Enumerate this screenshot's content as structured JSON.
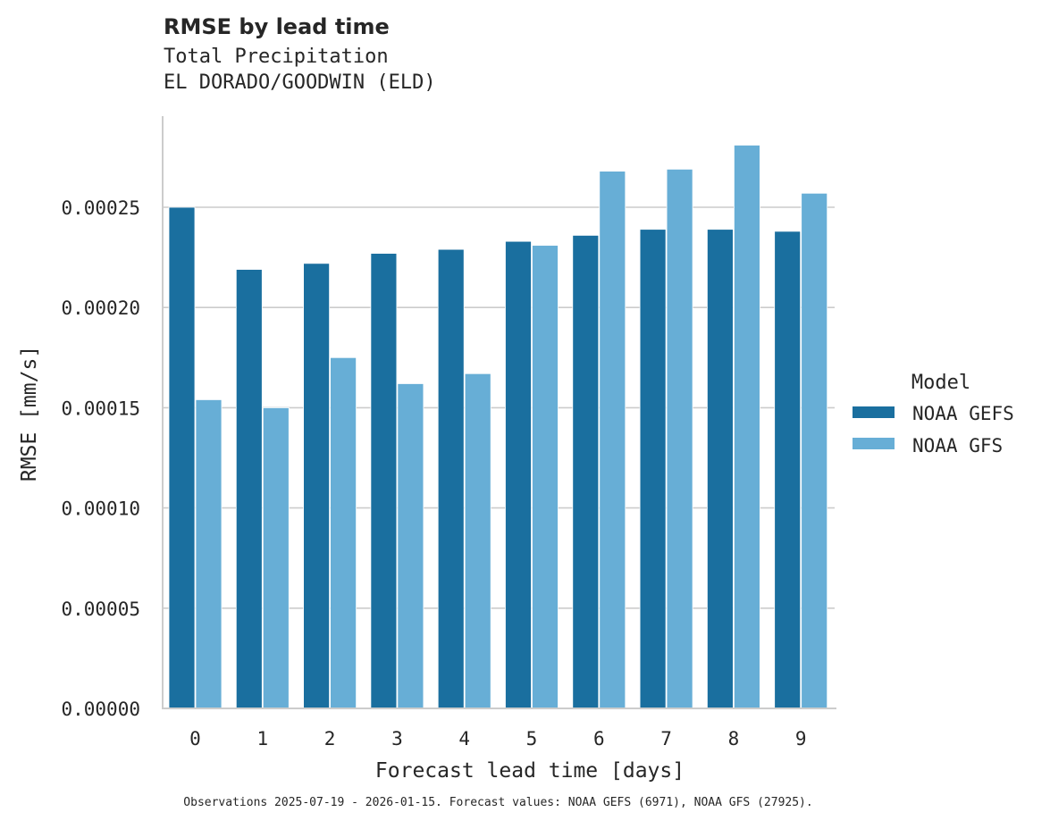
{
  "header": {
    "title": "RMSE by lead time",
    "subtitle_line1": "Total Precipitation",
    "subtitle_line2": "EL DORADO/GOODWIN (ELD)"
  },
  "axes": {
    "xlabel": "Forecast lead time [days]",
    "ylabel": "RMSE [mm/s]",
    "yticks": [
      "0.00000",
      "0.00005",
      "0.00010",
      "0.00015",
      "0.00020",
      "0.00025"
    ]
  },
  "legend": {
    "title": "Model",
    "items": [
      {
        "label": "NOAA GEFS",
        "color": "#1a6f9f"
      },
      {
        "label": "NOAA GFS",
        "color": "#67aed6"
      }
    ]
  },
  "caption": "Observations 2025-07-19 - 2026-01-15. Forecast values: NOAA GEFS (6971), NOAA GFS (27925).",
  "chart_data": {
    "type": "bar",
    "title": "RMSE by lead time",
    "subtitle": "Total Precipitation — EL DORADO/GOODWIN (ELD)",
    "xlabel": "Forecast lead time [days]",
    "ylabel": "RMSE [mm/s]",
    "categories": [
      "0",
      "1",
      "2",
      "3",
      "4",
      "5",
      "6",
      "7",
      "8",
      "9"
    ],
    "series": [
      {
        "name": "NOAA GEFS",
        "color": "#1a6f9f",
        "values": [
          0.00025,
          0.000219,
          0.000222,
          0.000227,
          0.000229,
          0.000233,
          0.000236,
          0.000239,
          0.000239,
          0.000238
        ]
      },
      {
        "name": "NOAA GFS",
        "color": "#67aed6",
        "values": [
          0.000154,
          0.00015,
          0.000175,
          0.000162,
          0.000167,
          0.000231,
          0.000268,
          0.000269,
          0.000281,
          0.000257
        ]
      }
    ],
    "ylim": [
      0,
      0.000295
    ],
    "yticks": [
      0,
      5e-05,
      0.0001,
      0.00015,
      0.0002,
      0.00025
    ],
    "grid": "horizontal",
    "legend_position": "right",
    "legend_title": "Model"
  }
}
